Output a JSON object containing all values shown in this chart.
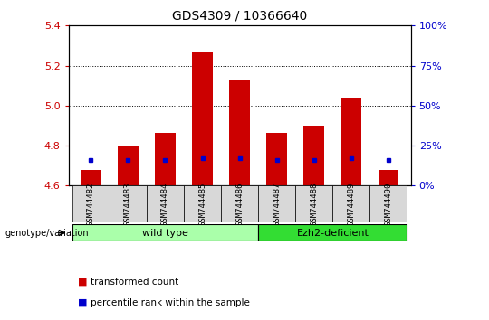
{
  "title": "GDS4309 / 10366640",
  "samples": [
    "GSM744482",
    "GSM744483",
    "GSM744484",
    "GSM744485",
    "GSM744486",
    "GSM744487",
    "GSM744488",
    "GSM744489",
    "GSM744490"
  ],
  "transformed_counts": [
    4.68,
    4.8,
    4.865,
    5.265,
    5.13,
    4.865,
    4.9,
    5.04,
    4.68
  ],
  "percentile_y": [
    4.73,
    4.73,
    4.73,
    4.735,
    4.735,
    4.73,
    4.73,
    4.735,
    4.73
  ],
  "baseline": 4.6,
  "ylim": [
    4.6,
    5.4
  ],
  "yticks": [
    4.6,
    4.8,
    5.0,
    5.2,
    5.4
  ],
  "right_yticks": [
    0,
    25,
    50,
    75,
    100
  ],
  "bar_color": "#cc0000",
  "dot_color": "#0000cc",
  "left_tick_color": "#cc0000",
  "right_tick_color": "#0000cc",
  "wt_color": "#aaffaa",
  "ezh_color": "#33dd33",
  "genotype_label": "genotype/variation",
  "legend_items": [
    {
      "color": "#cc0000",
      "label": "transformed count"
    },
    {
      "color": "#0000cc",
      "label": "percentile rank within the sample"
    }
  ],
  "wt_samples": 5,
  "ezh_samples": 4
}
